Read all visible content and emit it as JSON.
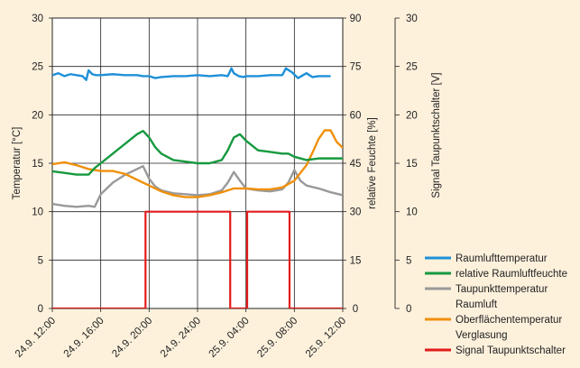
{
  "chart_data": {
    "type": "line",
    "x_tick_labels": [
      "24.9. 12:00",
      "24.9. 16:00",
      "24.9. 20:00",
      "24.9. 24:00",
      "25.9. 04:00",
      "25.9. 08:00",
      "25.9. 12:00"
    ],
    "x_unit": "hours from 24.9. 12:00",
    "xlim": [
      0,
      24
    ],
    "left_axis": {
      "label": "Temperatur [°C]",
      "ylim": [
        0,
        30
      ],
      "ticks": [
        "0",
        "5",
        "10",
        "15",
        "20",
        "25",
        "30"
      ]
    },
    "right_axis": {
      "label": "relative Feuchte [%]",
      "ylim": [
        0,
        90
      ],
      "ticks": [
        "0",
        "15",
        "30",
        "45",
        "60",
        "75",
        "90"
      ]
    },
    "far_right_axis": {
      "label": "Signal Taupunktschalter [V]",
      "ylim": [
        0,
        30
      ],
      "ticks": [
        "0",
        "5",
        "10",
        "15",
        "20",
        "25",
        "30"
      ]
    },
    "grid": true,
    "legend_position": "bottom-right",
    "series": [
      {
        "name": "Raumlufttemperatur",
        "axis": "left",
        "color": "#1e90d8",
        "x": [
          0,
          0.5,
          1,
          1.5,
          2,
          2.5,
          2.8,
          3,
          3.3,
          3.6,
          4,
          5,
          6,
          7,
          7.5,
          8,
          8.5,
          9,
          10,
          11,
          12,
          13,
          14,
          14.5,
          14.8,
          15,
          15.4,
          15.8,
          16,
          17,
          18,
          19,
          19.3,
          19.8,
          20.3,
          21,
          21.5,
          22,
          23
        ],
        "values": [
          24.1,
          24.3,
          24.0,
          24.2,
          24.1,
          24.0,
          23.6,
          24.6,
          24.2,
          24.1,
          24.1,
          24.2,
          24.1,
          24.1,
          24.0,
          24.0,
          23.8,
          23.9,
          24.0,
          24.0,
          24.1,
          24.0,
          24.1,
          24.0,
          24.8,
          24.3,
          24.0,
          23.9,
          24.0,
          24.0,
          24.1,
          24.1,
          24.8,
          24.4,
          23.8,
          24.3,
          23.9,
          24.0,
          24.0
        ]
      },
      {
        "name": "relative Raumluftfeuchte",
        "axis": "right",
        "color": "#16993f",
        "x": [
          0,
          1,
          2,
          3,
          3.5,
          4,
          5,
          6,
          7,
          7.5,
          8,
          8.5,
          9,
          10,
          11,
          12,
          13,
          14,
          14.5,
          15,
          15.5,
          16,
          17,
          18,
          19,
          19.5,
          20,
          21,
          22,
          23,
          24
        ],
        "values": [
          42.5,
          42,
          41.5,
          41.5,
          43.5,
          45,
          48,
          51,
          54,
          55,
          53,
          50,
          48,
          46,
          45.5,
          45,
          45,
          46,
          49,
          53,
          54,
          52,
          49,
          48.5,
          48,
          48,
          47,
          46,
          46.5,
          46.5,
          46.5
        ]
      },
      {
        "name": "Taupunkttemperatur Raumluft",
        "axis": "left",
        "color": "#999999",
        "x": [
          0,
          1,
          2,
          3,
          3.5,
          4,
          5,
          6,
          7,
          7.5,
          8,
          8.5,
          9,
          10,
          11,
          12,
          13,
          14,
          14.5,
          15,
          15.5,
          16,
          17,
          18,
          19,
          19.5,
          20,
          20.5,
          21,
          22,
          23,
          24
        ],
        "values": [
          10.8,
          10.6,
          10.5,
          10.6,
          10.5,
          11.8,
          13,
          13.8,
          14.4,
          14.7,
          13.4,
          12.6,
          12.2,
          11.9,
          11.8,
          11.7,
          11.8,
          12.2,
          13,
          14.1,
          13.2,
          12.4,
          12.2,
          12.1,
          12.3,
          13,
          14.3,
          13.2,
          12.7,
          12.4,
          12.0,
          11.7
        ]
      },
      {
        "name": "Oberflächentemperatur Verglasung",
        "axis": "left",
        "color": "#f0900a",
        "x": [
          0,
          1,
          2,
          3,
          4,
          5,
          6,
          7,
          8,
          9,
          10,
          11,
          12,
          13,
          14,
          15,
          16,
          17,
          18,
          19,
          20,
          21,
          21.5,
          22,
          22.5,
          23,
          23.5,
          24
        ],
        "values": [
          14.9,
          15.1,
          14.8,
          14.4,
          14.2,
          14.2,
          13.9,
          13.3,
          12.7,
          12.1,
          11.7,
          11.5,
          11.5,
          11.7,
          12.0,
          12.4,
          12.4,
          12.3,
          12.3,
          12.5,
          13.2,
          14.8,
          16.1,
          17.5,
          18.4,
          18.4,
          17.2,
          16.6
        ]
      },
      {
        "name": "Signal Taupunktschalter",
        "axis": "far_right",
        "color": "#e31b1b",
        "x": [
          0,
          7.7,
          7.7,
          14.7,
          14.7,
          16.1,
          16.1,
          19.6,
          19.6,
          24
        ],
        "values": [
          0,
          0,
          10,
          10,
          0,
          0,
          10,
          10,
          0,
          0
        ]
      }
    ]
  },
  "legend": [
    {
      "lines": [
        "Raumlufttemperatur"
      ],
      "color": "#1e90d8"
    },
    {
      "lines": [
        "relative Raumluftfeuchte"
      ],
      "color": "#16993f"
    },
    {
      "lines": [
        "Taupunkttemperatur",
        "Raumluft"
      ],
      "color": "#999999"
    },
    {
      "lines": [
        "Oberflächentemperatur",
        "Verglasung"
      ],
      "color": "#f0900a"
    },
    {
      "lines": [
        "Signal Taupunktschalter"
      ],
      "color": "#e31b1b"
    }
  ]
}
